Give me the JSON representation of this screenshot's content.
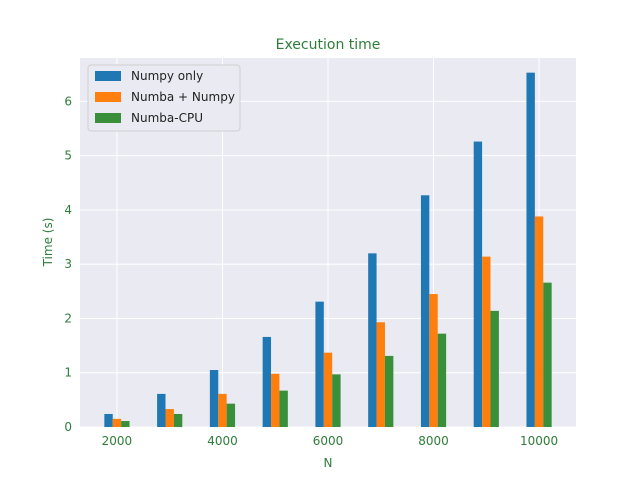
{
  "chart_data": {
    "type": "bar",
    "title": "Execution time",
    "xlabel": "N",
    "ylabel": "Time (s)",
    "x": [
      2000,
      3000,
      4000,
      5000,
      6000,
      7000,
      8000,
      9000,
      10000
    ],
    "xticks": [
      "2000",
      "4000",
      "6000",
      "8000",
      "10000"
    ],
    "yticks": [
      "0",
      "1",
      "2",
      "3",
      "4",
      "5",
      "6"
    ],
    "xlim": [
      1300,
      10700
    ],
    "ylim": [
      0,
      6.8
    ],
    "grid": true,
    "legend_position": "top-left",
    "series": [
      {
        "name": "Numpy only",
        "color": "#1f77b4",
        "values": [
          0.24,
          0.61,
          1.05,
          1.66,
          2.31,
          3.2,
          4.27,
          5.26,
          6.53
        ]
      },
      {
        "name": "Numba + Numpy",
        "color": "#ff7f0e",
        "values": [
          0.15,
          0.33,
          0.61,
          0.98,
          1.37,
          1.93,
          2.45,
          3.14,
          3.88
        ]
      },
      {
        "name": "Numba-CPU",
        "color": "#3a8f3a",
        "values": [
          0.11,
          0.24,
          0.43,
          0.67,
          0.97,
          1.31,
          1.72,
          2.14,
          2.66
        ]
      }
    ]
  }
}
